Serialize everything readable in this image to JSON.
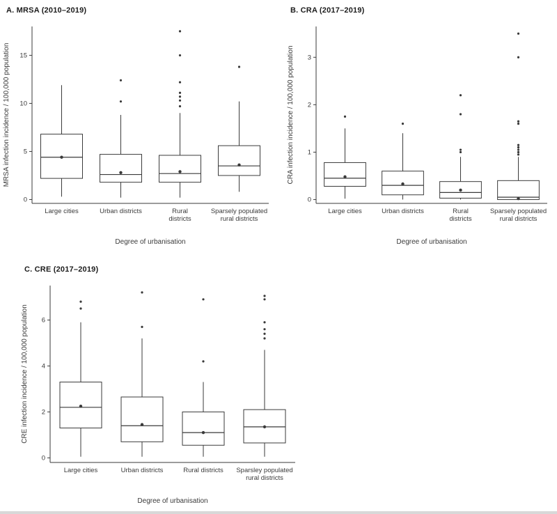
{
  "style": {
    "ink": "#3a3a3a",
    "background": "#ffffff",
    "divider": "#d8d8d8",
    "box_fill": "#ffffff"
  },
  "chart_data": [
    {
      "type": "boxplot",
      "panel": "A",
      "title": "A. MRSA (2010–2019)",
      "xlabel": "Degree of urbanisation",
      "ylabel": "MRSA infection incidence / 100,000 population",
      "ylim": [
        -0.4,
        18.0
      ],
      "yticks": [
        0,
        5,
        10,
        15
      ],
      "grid": false,
      "legend": "none",
      "categories": [
        [
          "Large cities"
        ],
        [
          "Urban districts"
        ],
        [
          "Rural",
          "districts"
        ],
        [
          "Sparsely populated",
          "rural districts"
        ]
      ],
      "boxes": [
        {
          "whisker_low": 0.3,
          "q1": 2.2,
          "median": 4.4,
          "mean": 4.4,
          "q3": 6.8,
          "whisker_high": 11.9,
          "outliers": []
        },
        {
          "whisker_low": 0.2,
          "q1": 1.8,
          "median": 2.6,
          "mean": 2.8,
          "q3": 4.7,
          "whisker_high": 8.8,
          "outliers": [
            10.2,
            12.4
          ]
        },
        {
          "whisker_low": 0.2,
          "q1": 1.8,
          "median": 2.7,
          "mean": 2.9,
          "q3": 4.6,
          "whisker_high": 9.0,
          "outliers": [
            9.7,
            10.3,
            10.7,
            11.1,
            12.2,
            15.0,
            17.5
          ]
        },
        {
          "whisker_low": 0.8,
          "q1": 2.5,
          "median": 3.5,
          "mean": 3.6,
          "q3": 5.6,
          "whisker_high": 10.2,
          "outliers": [
            13.8
          ]
        }
      ]
    },
    {
      "type": "boxplot",
      "panel": "B",
      "title": "B. CRA (2017–2019)",
      "xlabel": "Degree of urbanisation",
      "ylabel": "CRA infection incidence / 100,000 population",
      "ylim": [
        -0.08,
        3.65
      ],
      "yticks": [
        0,
        1,
        2,
        3
      ],
      "grid": false,
      "legend": "none",
      "categories": [
        [
          "Large cities"
        ],
        [
          "Urban districts"
        ],
        [
          "Rural",
          "districts"
        ],
        [
          "Sparsely populated",
          "rural districts"
        ]
      ],
      "boxes": [
        {
          "whisker_low": 0.02,
          "q1": 0.28,
          "median": 0.45,
          "mean": 0.48,
          "q3": 0.78,
          "whisker_high": 1.5,
          "outliers": [
            1.75
          ]
        },
        {
          "whisker_low": 0.0,
          "q1": 0.1,
          "median": 0.3,
          "mean": 0.33,
          "q3": 0.6,
          "whisker_high": 1.4,
          "outliers": [
            1.6
          ]
        },
        {
          "whisker_low": 0.0,
          "q1": 0.03,
          "median": 0.15,
          "mean": 0.2,
          "q3": 0.38,
          "whisker_high": 0.9,
          "outliers": [
            1.0,
            1.05,
            1.8,
            2.2
          ]
        },
        {
          "whisker_low": 0.0,
          "q1": 0.0,
          "median": 0.05,
          "mean": 0.02,
          "q3": 0.4,
          "whisker_high": 0.9,
          "outliers": [
            0.95,
            1.0,
            1.05,
            1.1,
            1.15,
            1.6,
            1.65,
            3.0,
            3.5
          ]
        }
      ]
    },
    {
      "type": "boxplot",
      "panel": "C",
      "title": "C. CRE (2017–2019)",
      "xlabel": "Degree of urbanisation",
      "ylabel": "CRE infection incidence / 100,000 population",
      "ylim": [
        -0.2,
        7.5
      ],
      "yticks": [
        0,
        2,
        4,
        6
      ],
      "grid": false,
      "legend": "none",
      "categories": [
        [
          "Large  cities"
        ],
        [
          "Urban districts"
        ],
        [
          "Rural districts"
        ],
        [
          "Sparsley  populated",
          "rural districts"
        ]
      ],
      "boxes": [
        {
          "whisker_low": 0.05,
          "q1": 1.3,
          "median": 2.2,
          "mean": 2.25,
          "q3": 3.3,
          "whisker_high": 5.9,
          "outliers": [
            6.5,
            6.8
          ]
        },
        {
          "whisker_low": 0.05,
          "q1": 0.7,
          "median": 1.4,
          "mean": 1.45,
          "q3": 2.65,
          "whisker_high": 5.2,
          "outliers": [
            5.7,
            7.2
          ]
        },
        {
          "whisker_low": 0.05,
          "q1": 0.55,
          "median": 1.1,
          "mean": 1.1,
          "q3": 2.0,
          "whisker_high": 3.3,
          "outliers": [
            4.2,
            6.9
          ]
        },
        {
          "whisker_low": 0.05,
          "q1": 0.65,
          "median": 1.35,
          "mean": 1.35,
          "q3": 2.1,
          "whisker_high": 4.7,
          "outliers": [
            5.2,
            5.4,
            5.6,
            5.9,
            6.9,
            7.05
          ]
        }
      ]
    }
  ]
}
